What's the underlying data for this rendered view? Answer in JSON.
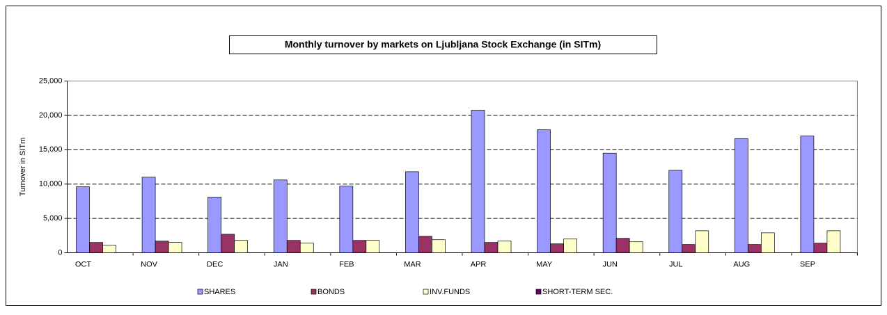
{
  "chart_data": {
    "type": "bar",
    "title": "Monthly turnover by markets on Ljubljana Stock Exchange (in SITm)",
    "y_label": "Turnover in SITm",
    "categories": [
      "OCT",
      "NOV",
      "DEC",
      "JAN",
      "FEB",
      "MAR",
      "APR",
      "MAY",
      "JUN",
      "JUL",
      "AUG",
      "SEP"
    ],
    "series": [
      {
        "name": "SHARES",
        "color": "#9999ff",
        "values": [
          9600,
          11000,
          8100,
          10600,
          9700,
          11800,
          20750,
          17900,
          14500,
          12000,
          16600,
          17000
        ]
      },
      {
        "name": "BONDS",
        "color": "#993366",
        "values": [
          1500,
          1700,
          2700,
          1800,
          1800,
          2400,
          1500,
          1300,
          2100,
          1200,
          1200,
          1400
        ]
      },
      {
        "name": "INV.FUNDS",
        "color": "#ffffcc",
        "values": [
          1100,
          1500,
          1800,
          1400,
          1800,
          1900,
          1700,
          2000,
          1600,
          3200,
          2900,
          3200
        ]
      },
      {
        "name": "SHORT-TERM SEC.",
        "color": "#660066",
        "values": [
          null,
          null,
          null,
          null,
          null,
          null,
          null,
          null,
          null,
          null,
          null,
          null
        ]
      }
    ],
    "ylim": [
      0,
      25000
    ],
    "yticks": [
      0,
      {
        "value": 5000,
        "label": "5,000"
      },
      {
        "value": 10000,
        "label": "10,000"
      },
      {
        "value": 15000,
        "label": "15,000"
      },
      {
        "value": 20000,
        "label": "20,000"
      },
      {
        "value": 25000,
        "label": "25,000"
      }
    ],
    "grid": true,
    "legend": "bottom"
  }
}
